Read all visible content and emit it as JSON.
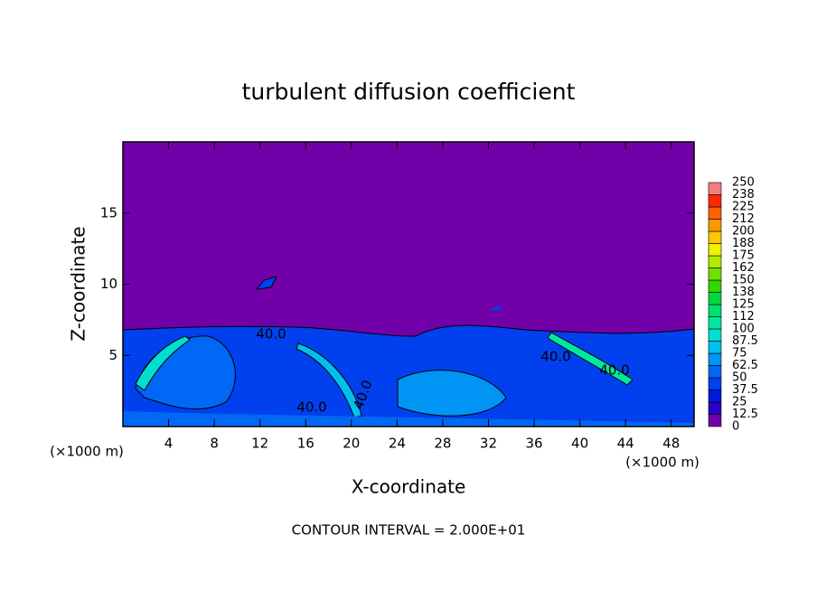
{
  "chart_data": {
    "type": "contour",
    "title": "turbulent diffusion coefficient",
    "x_label": "X-coordinate",
    "y_label": "Z-coordinate",
    "x_unit": "(×1000 m)",
    "y_unit": "(×1000 m)",
    "xlim": [
      0,
      50
    ],
    "xticks": [
      4,
      8,
      12,
      16,
      20,
      24,
      28,
      32,
      36,
      40,
      44,
      48
    ],
    "ylim": [
      0,
      20
    ],
    "yticks": [
      5,
      10,
      15
    ],
    "contour_labels": [
      "40.0",
      "40.0",
      "40.0",
      "40.0",
      "40.0"
    ],
    "colorbar": {
      "ticks": [
        0,
        12.5,
        25,
        37.5,
        50,
        62.5,
        75,
        87.5,
        100,
        112,
        125,
        138,
        150,
        162,
        175,
        188,
        200,
        212,
        225,
        238,
        250
      ],
      "colors": [
        "#7200a8",
        "#2a00c4",
        "#0018dc",
        "#0040ee",
        "#0068f4",
        "#0094f4",
        "#00c0ee",
        "#00e0d0",
        "#00e8a0",
        "#00e070",
        "#00d840",
        "#30d800",
        "#70e000",
        "#b0ec00",
        "#f0f000",
        "#ffc800",
        "#ff9800",
        "#ff6000",
        "#ff2800",
        "#f08080"
      ]
    },
    "footnote": "CONTOUR INTERVAL = 2.000E+01"
  }
}
